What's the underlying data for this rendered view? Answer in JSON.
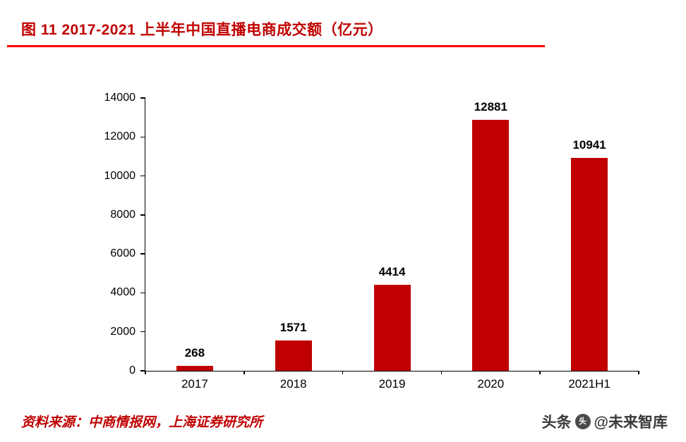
{
  "title": "图 11 2017-2021 上半年中国直播电商成交额（亿元）",
  "source": "资料来源：中商情报网，上海证券研究所",
  "watermark": {
    "brand": "头条",
    "logo_glyph": "头",
    "handle": "@未来智库"
  },
  "colors": {
    "bar": "#c00000",
    "title": "#c00000",
    "title_rule": "#ff0000",
    "source_text": "#c00000",
    "axis": "#000000",
    "watermark_text": "#3a3a3a"
  },
  "chart_data": {
    "type": "bar",
    "title": "2017-2021 上半年中国直播电商成交额（亿元）",
    "categories": [
      "2017",
      "2018",
      "2019",
      "2020",
      "2021H1"
    ],
    "values": [
      268,
      1571,
      4414,
      12881,
      10941
    ],
    "xlabel": "",
    "ylabel": "",
    "unit": "亿元",
    "ylim": [
      0,
      14000
    ],
    "ytick_step": 2000,
    "yticks": [
      0,
      2000,
      4000,
      6000,
      8000,
      10000,
      12000,
      14000
    ],
    "grid": false,
    "legend": "none",
    "data_labels": true,
    "bar_color": "#c00000"
  }
}
